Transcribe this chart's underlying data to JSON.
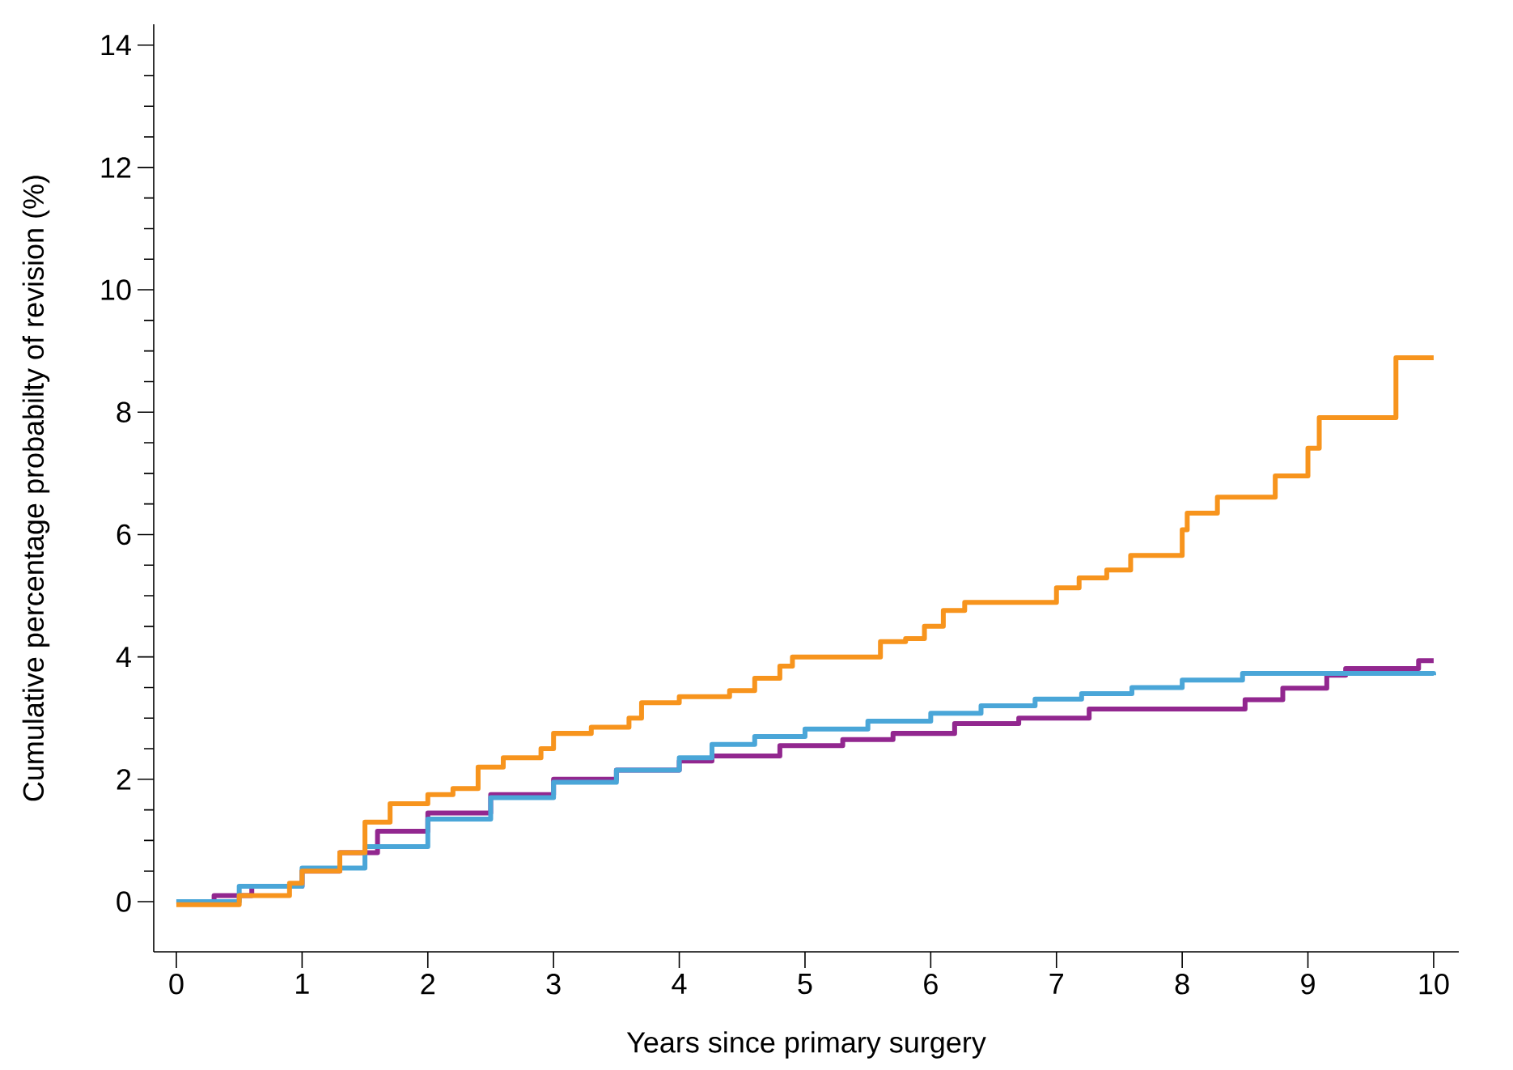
{
  "chart_data": {
    "type": "step",
    "xlabel": "Years since primary surgery",
    "ylabel": "Cumulative percentage probabilty of revision (%)",
    "xlim": [
      -0.18,
      10.2
    ],
    "ylim": [
      -0.82,
      14.34
    ],
    "xticks": [
      0,
      1,
      2,
      3,
      4,
      5,
      6,
      7,
      8,
      9,
      10
    ],
    "yticks": [
      0,
      2,
      4,
      6,
      8,
      10,
      12,
      14
    ],
    "grid": false,
    "marker": "none",
    "line_style": "solid",
    "series": [
      {
        "color": "#92278f",
        "x": [
          0,
          0.3,
          0.6,
          1.0,
          1.3,
          1.6,
          2.0,
          2.5,
          3.0,
          3.5,
          4.0,
          4.26,
          4.8,
          5.3,
          5.7,
          6.19,
          6.7,
          7.26,
          8.2,
          8.5,
          8.8,
          9.15,
          9.3,
          9.88,
          10.0
        ],
        "values": [
          0,
          0.1,
          0.25,
          0.5,
          0.8,
          1.15,
          1.45,
          1.75,
          2.0,
          2.15,
          2.3,
          2.38,
          2.55,
          2.65,
          2.75,
          2.91,
          3.0,
          3.15,
          3.15,
          3.3,
          3.49,
          3.7,
          3.81,
          3.94,
          3.94
        ]
      },
      {
        "color": "#4aa6d8",
        "x": [
          0,
          0.5,
          1.0,
          1.5,
          2.0,
          2.5,
          3.0,
          3.5,
          4.0,
          4.26,
          4.6,
          5.0,
          5.5,
          6.0,
          6.4,
          6.83,
          7.2,
          7.6,
          8.0,
          8.48,
          10.0
        ],
        "values": [
          0,
          0.25,
          0.55,
          0.9,
          1.35,
          1.7,
          1.95,
          2.15,
          2.35,
          2.57,
          2.7,
          2.82,
          2.95,
          3.08,
          3.2,
          3.31,
          3.4,
          3.5,
          3.62,
          3.73,
          3.7
        ]
      },
      {
        "color": "#f7941d",
        "x": [
          0,
          0.5,
          0.9,
          1.0,
          1.3,
          1.5,
          1.7,
          2.0,
          2.2,
          2.4,
          2.6,
          2.9,
          3.0,
          3.3,
          3.6,
          3.7,
          4.0,
          4.4,
          4.6,
          4.8,
          4.9,
          5.6,
          5.8,
          5.95,
          6.1,
          6.27,
          7.0,
          7.18,
          7.4,
          7.59,
          8.0,
          8.04,
          8.28,
          8.74,
          9.0,
          9.09,
          9.7,
          10.0
        ],
        "values": [
          -0.05,
          0.1,
          0.3,
          0.5,
          0.8,
          1.3,
          1.6,
          1.75,
          1.85,
          2.2,
          2.35,
          2.5,
          2.75,
          2.85,
          3.0,
          3.25,
          3.35,
          3.45,
          3.65,
          3.85,
          4.0,
          4.25,
          4.3,
          4.5,
          4.76,
          4.89,
          5.13,
          5.29,
          5.42,
          5.66,
          6.08,
          6.35,
          6.61,
          6.96,
          7.41,
          7.91,
          8.89,
          8.89
        ]
      }
    ]
  }
}
